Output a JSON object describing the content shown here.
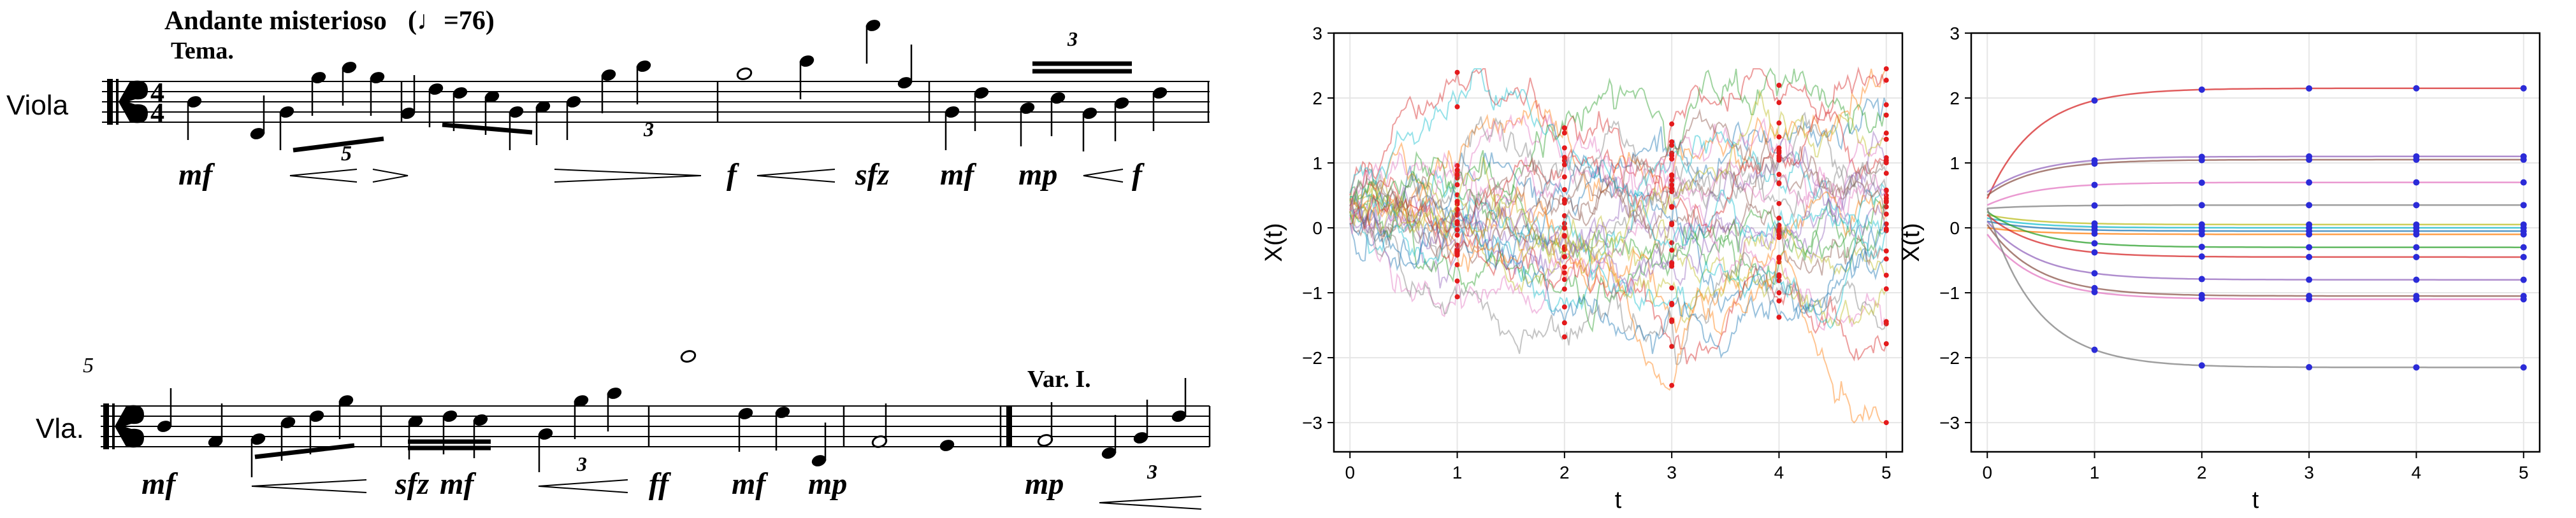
{
  "score": {
    "tempo_title": "Andante misterioso",
    "tempo_mark": "(♩=76)",
    "tema_label": "Tema.",
    "staff1_instrument": "Viola",
    "staff2_instrument": "Vla.",
    "time_sig_top": "4",
    "time_sig_bottom": "4",
    "measure_number_2": "5",
    "tuplet_5": "5",
    "tuplet_3": "3",
    "variation_label": "Var. I.",
    "dynamics_staff1": [
      "mf",
      "f",
      "sfz",
      "mf",
      "mp",
      "f"
    ],
    "dynamics_staff2": [
      "mf",
      "sfz",
      "mf",
      "ff",
      "mf",
      "mp",
      "mp"
    ]
  },
  "plots": [
    {
      "ylabel": "X(t)",
      "xlabel": "t",
      "xticks": [
        "0",
        "1",
        "2",
        "3",
        "4",
        "5"
      ],
      "yticks": [
        "3",
        "2",
        "1",
        "0",
        "−1",
        "−2",
        "−3"
      ],
      "xlim": [
        -0.15,
        5.15
      ],
      "ylim": [
        -3.45,
        3.0
      ],
      "style": "noisy-paths",
      "marker_color": "#e41a1c",
      "grid": true
    },
    {
      "ylabel": "X(t)",
      "xlabel": "t",
      "xticks": [
        "0",
        "1",
        "2",
        "3",
        "4",
        "5"
      ],
      "yticks": [
        "3",
        "2",
        "1",
        "0",
        "−1",
        "−2",
        "−3"
      ],
      "xlim": [
        -0.15,
        5.15
      ],
      "ylim": [
        -3.45,
        3.0
      ],
      "style": "smooth-paths",
      "marker_color": "#2b2bd8",
      "grid": true
    }
  ],
  "chart_data": [
    {
      "type": "line",
      "title": "",
      "xlabel": "t",
      "ylabel": "X(t)",
      "xlim": [
        -0.15,
        5.15
      ],
      "ylim": [
        -3.45,
        3.0
      ],
      "x_markers": [
        1,
        2,
        3,
        4,
        5
      ],
      "series_count": 30,
      "values_at_t5": [
        2.5,
        1.7,
        1.3,
        1.1,
        1.0,
        0.9,
        0.8,
        0.6,
        0.4,
        0.2,
        0.1,
        -0.1,
        -0.3,
        -0.5,
        -0.7,
        -0.9,
        -1.0,
        -1.2,
        -1.4,
        -1.6,
        -1.9,
        -2.0
      ]
    },
    {
      "type": "line",
      "title": "",
      "xlabel": "t",
      "ylabel": "X(t)",
      "xlim": [
        -0.15,
        5.15
      ],
      "ylim": [
        -3.45,
        3.0
      ],
      "x_markers": [
        1,
        2,
        3,
        4,
        5
      ],
      "series": [
        {
          "start": 0.45,
          "end": 2.15
        },
        {
          "start": 0.55,
          "end": 1.1
        },
        {
          "start": 0.5,
          "end": 1.05
        },
        {
          "start": 0.35,
          "end": 0.7
        },
        {
          "start": 0.3,
          "end": 0.35
        },
        {
          "start": 0.2,
          "end": 0.05
        },
        {
          "start": 0.15,
          "end": 0.0
        },
        {
          "start": 0.1,
          "end": -0.05
        },
        {
          "start": 0.0,
          "end": -0.1
        },
        {
          "start": 0.25,
          "end": -0.3
        },
        {
          "start": 0.2,
          "end": -0.45
        },
        {
          "start": 0.1,
          "end": -0.8
        },
        {
          "start": 0.05,
          "end": -1.05
        },
        {
          "start": -0.1,
          "end": -1.1
        },
        {
          "start": 0.3,
          "end": -2.15
        }
      ]
    }
  ]
}
